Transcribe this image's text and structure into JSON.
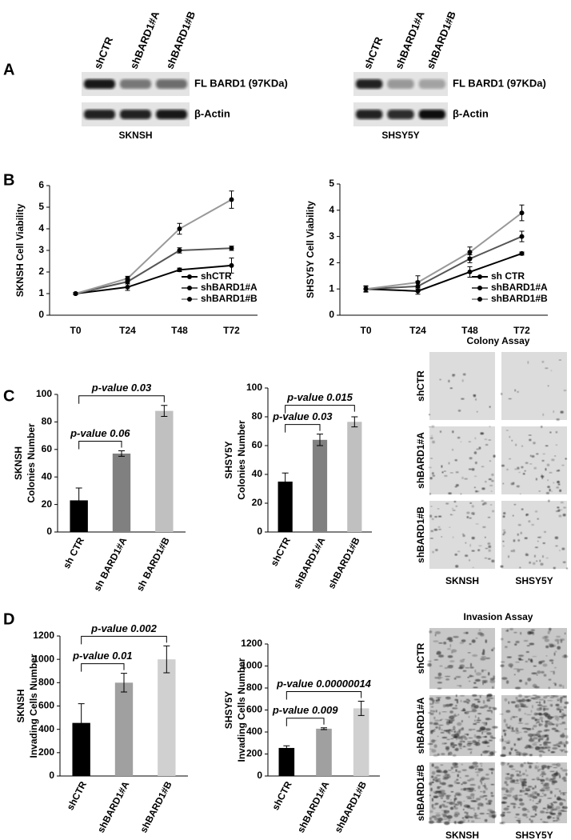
{
  "panel_labels": [
    "A",
    "B",
    "C",
    "D"
  ],
  "blots": [
    {
      "lanes": [
        "shCTR",
        "shBARD1#A",
        "shBARD1#B"
      ],
      "rows": [
        "FL BARD1 (97KDa)",
        "β-Actin"
      ],
      "cell_line": "SKNSH"
    },
    {
      "lanes": [
        "shCTR",
        "shBARD1#A",
        "shBARD1#B"
      ],
      "rows": [
        "FL BARD1 (97KDa)",
        "β-Actin"
      ],
      "cell_line": "SHSY5Y"
    }
  ],
  "chart_data": [
    {
      "type": "line",
      "ylabel": "SKNSH Cell Viability",
      "categories": [
        "T0",
        "T24",
        "T48",
        "T72"
      ],
      "ylim": [
        0,
        6
      ],
      "yticks": [
        0,
        1,
        2,
        3,
        4,
        5,
        6
      ],
      "legend": "lower right",
      "series": [
        {
          "name": "shCTR",
          "color": "#000000",
          "values": [
            1,
            1.3,
            2.1,
            2.3
          ],
          "errors": [
            0.05,
            0.15,
            0.08,
            0.35
          ]
        },
        {
          "name": "shBARD1#A",
          "color": "#555555",
          "values": [
            1,
            1.55,
            3.0,
            3.1
          ],
          "errors": [
            0.05,
            0.1,
            0.12,
            0.1
          ]
        },
        {
          "name": "shBARD1#B",
          "color": "#999999",
          "values": [
            1,
            1.7,
            4.0,
            5.35
          ],
          "errors": [
            0.05,
            0.1,
            0.25,
            0.4
          ]
        }
      ]
    },
    {
      "type": "line",
      "ylabel": "SHSY5Y Cell Viability",
      "categories": [
        "T0",
        "T24",
        "T48",
        "T72"
      ],
      "ylim": [
        0,
        5
      ],
      "yticks": [
        0,
        1,
        2,
        3,
        4,
        5
      ],
      "legend": "lower right",
      "series": [
        {
          "name": "sh CTR",
          "color": "#000000",
          "values": [
            1,
            0.92,
            1.65,
            2.35
          ],
          "errors": [
            0.12,
            0.12,
            0.2,
            0.06
          ]
        },
        {
          "name": "shBARD1#A",
          "color": "#555555",
          "values": [
            1,
            1.1,
            2.15,
            3.0
          ],
          "errors": [
            0.1,
            0.2,
            0.15,
            0.2
          ]
        },
        {
          "name": "shBARD1#B",
          "color": "#999999",
          "values": [
            1,
            1.25,
            2.4,
            3.9
          ],
          "errors": [
            0.1,
            0.25,
            0.2,
            0.3
          ]
        }
      ]
    },
    {
      "type": "bar",
      "ylabel": [
        "SKNSH",
        "Colonies Number"
      ],
      "categories": [
        "sh CTR",
        "sh BARD1#A",
        "sh BARD1#B"
      ],
      "values": [
        23,
        57,
        88
      ],
      "errors": [
        9,
        2,
        4
      ],
      "colors": [
        "#000000",
        "#808080",
        "#c0c0c0"
      ],
      "ylim": [
        0,
        100
      ],
      "yticks": [
        0,
        20,
        40,
        60,
        80,
        100
      ],
      "annotations": [
        "p-value 0.06",
        "p-value 0.03"
      ]
    },
    {
      "type": "bar",
      "ylabel": [
        "SHSY5Y",
        "Colonies Number"
      ],
      "categories": [
        "shCTR",
        "shBARD1#A",
        "shBARD1#B"
      ],
      "values": [
        35,
        64,
        76.5
      ],
      "errors": [
        6,
        4,
        3.5
      ],
      "colors": [
        "#000000",
        "#808080",
        "#c0c0c0"
      ],
      "ylim": [
        0,
        100
      ],
      "yticks": [
        0,
        20,
        40,
        60,
        80,
        100
      ],
      "annotations": [
        "p-value 0.03",
        "p-value 0.015"
      ]
    },
    {
      "type": "bar",
      "ylabel": [
        "SKNSH",
        "Invading Cells Number"
      ],
      "categories": [
        "shCTR",
        "shBARD1#A",
        "shBARD1#B"
      ],
      "values": [
        455,
        800,
        1000
      ],
      "errors": [
        165,
        80,
        115
      ],
      "colors": [
        "#000000",
        "#a0a0a0",
        "#d0d0d0"
      ],
      "ylim": [
        0,
        1200
      ],
      "yticks": [
        0,
        200,
        400,
        600,
        800,
        1000,
        1200
      ],
      "annotations": [
        "p-value 0.01",
        "p-value 0.002"
      ]
    },
    {
      "type": "bar",
      "ylabel": [
        "SHSY5Y",
        "Invading Cells Number"
      ],
      "categories": [
        "shCTR",
        "shBARD1#A",
        "shBARD1#B"
      ],
      "values": [
        255,
        430,
        615
      ],
      "errors": [
        20,
        8,
        65
      ],
      "colors": [
        "#000000",
        "#a0a0a0",
        "#d0d0d0"
      ],
      "ylim": [
        0,
        1200
      ],
      "yticks": [
        0,
        200,
        400,
        600,
        800,
        1000,
        1200
      ],
      "annotations": [
        "p-value 0.009",
        "p-value 0.00000014"
      ]
    }
  ],
  "micrographs": [
    {
      "title": "Colony Assay",
      "rows": [
        "shCTR",
        "shBARD1#A",
        "shBARD1#B"
      ],
      "columns": [
        "SKNSH",
        "SHSY5Y"
      ]
    },
    {
      "title": "Invasion Assay",
      "rows": [
        "shCTR",
        "shBARD1#A",
        "shBARD1#B"
      ],
      "columns": [
        "SKNSH",
        "SHSY5Y"
      ]
    }
  ]
}
